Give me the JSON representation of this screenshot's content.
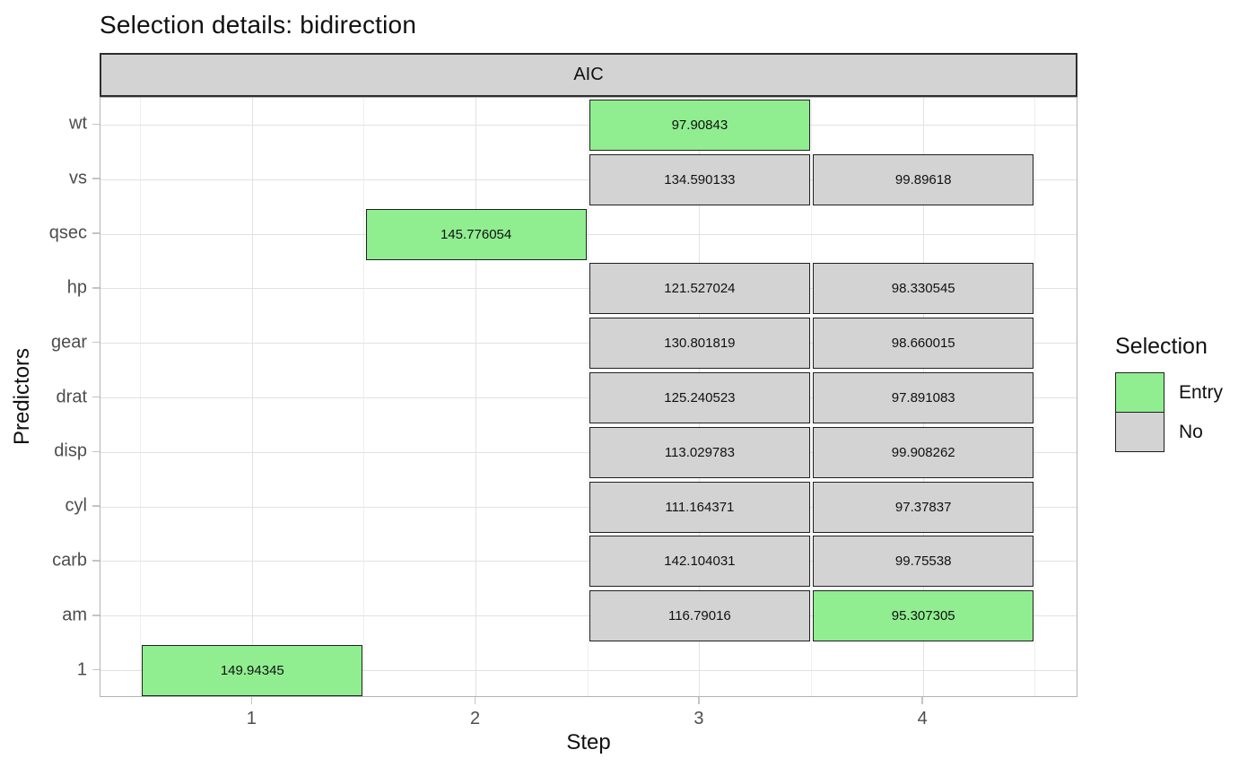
{
  "title": "Selection details: bidirection",
  "facet": {
    "label": "AIC"
  },
  "axes": {
    "x": {
      "label": "Step",
      "tick_labels": [
        "1",
        "2",
        "3",
        "4"
      ]
    },
    "y": {
      "label": "Predictors",
      "categories_top_to_bottom": [
        "wt",
        "vs",
        "qsec",
        "hp",
        "gear",
        "drat",
        "disp",
        "cyl",
        "carb",
        "am",
        "1"
      ]
    }
  },
  "legend": {
    "title": "Selection",
    "entries": [
      {
        "label": "Entry",
        "color": "#90ee90"
      },
      {
        "label": "No",
        "color": "#d3d3d3"
      }
    ]
  },
  "colors": {
    "entry_fill": "#90ee90",
    "no_fill": "#d3d3d3",
    "strip_bg": "#d3d3d3",
    "tile_border": "#1f1f1f",
    "panel_border": "#b3b3b3",
    "grid_major": "#e2e2e2",
    "grid_minor": "#efefef",
    "tick_label": "#4d4d4d",
    "text": "#111111"
  },
  "chart_data": {
    "type": "heatmap",
    "title": "Selection details: bidirection",
    "facet_label": "AIC",
    "xlabel": "Step",
    "ylabel": "Predictors",
    "x_ticks": [
      1,
      2,
      3,
      4
    ],
    "x_minor_ticks": [
      0.5,
      1.5,
      2.5,
      3.5,
      4.5
    ],
    "xlim": [
      0.32,
      4.7
    ],
    "y_categories_top_to_bottom": [
      "wt",
      "vs",
      "qsec",
      "hp",
      "gear",
      "drat",
      "disp",
      "cyl",
      "carb",
      "am",
      "1"
    ],
    "legend_position": "right",
    "grid": true,
    "tiles": [
      {
        "predictor": "1",
        "step": 1,
        "aic": 149.94345,
        "label": "149.94345",
        "selection": "Entry"
      },
      {
        "predictor": "qsec",
        "step": 2,
        "aic": 145.776054,
        "label": "145.776054",
        "selection": "Entry"
      },
      {
        "predictor": "wt",
        "step": 3,
        "aic": 97.90843,
        "label": "97.90843",
        "selection": "Entry"
      },
      {
        "predictor": "vs",
        "step": 3,
        "aic": 134.590133,
        "label": "134.590133",
        "selection": "No"
      },
      {
        "predictor": "vs",
        "step": 4,
        "aic": 99.89618,
        "label": "99.89618",
        "selection": "No"
      },
      {
        "predictor": "hp",
        "step": 3,
        "aic": 121.527024,
        "label": "121.527024",
        "selection": "No"
      },
      {
        "predictor": "hp",
        "step": 4,
        "aic": 98.330545,
        "label": "98.330545",
        "selection": "No"
      },
      {
        "predictor": "gear",
        "step": 3,
        "aic": 130.801819,
        "label": "130.801819",
        "selection": "No"
      },
      {
        "predictor": "gear",
        "step": 4,
        "aic": 98.660015,
        "label": "98.660015",
        "selection": "No"
      },
      {
        "predictor": "drat",
        "step": 3,
        "aic": 125.240523,
        "label": "125.240523",
        "selection": "No"
      },
      {
        "predictor": "drat",
        "step": 4,
        "aic": 97.891083,
        "label": "97.891083",
        "selection": "No"
      },
      {
        "predictor": "disp",
        "step": 3,
        "aic": 113.029783,
        "label": "113.029783",
        "selection": "No"
      },
      {
        "predictor": "disp",
        "step": 4,
        "aic": 99.908262,
        "label": "99.908262",
        "selection": "No"
      },
      {
        "predictor": "cyl",
        "step": 3,
        "aic": 111.164371,
        "label": "111.164371",
        "selection": "No"
      },
      {
        "predictor": "cyl",
        "step": 4,
        "aic": 97.37837,
        "label": "97.37837",
        "selection": "No"
      },
      {
        "predictor": "carb",
        "step": 3,
        "aic": 142.104031,
        "label": "142.104031",
        "selection": "No"
      },
      {
        "predictor": "carb",
        "step": 4,
        "aic": 99.75538,
        "label": "99.75538",
        "selection": "No"
      },
      {
        "predictor": "am",
        "step": 3,
        "aic": 116.79016,
        "label": "116.79016",
        "selection": "No"
      },
      {
        "predictor": "am",
        "step": 4,
        "aic": 95.307305,
        "label": "95.307305",
        "selection": "Entry"
      }
    ]
  }
}
